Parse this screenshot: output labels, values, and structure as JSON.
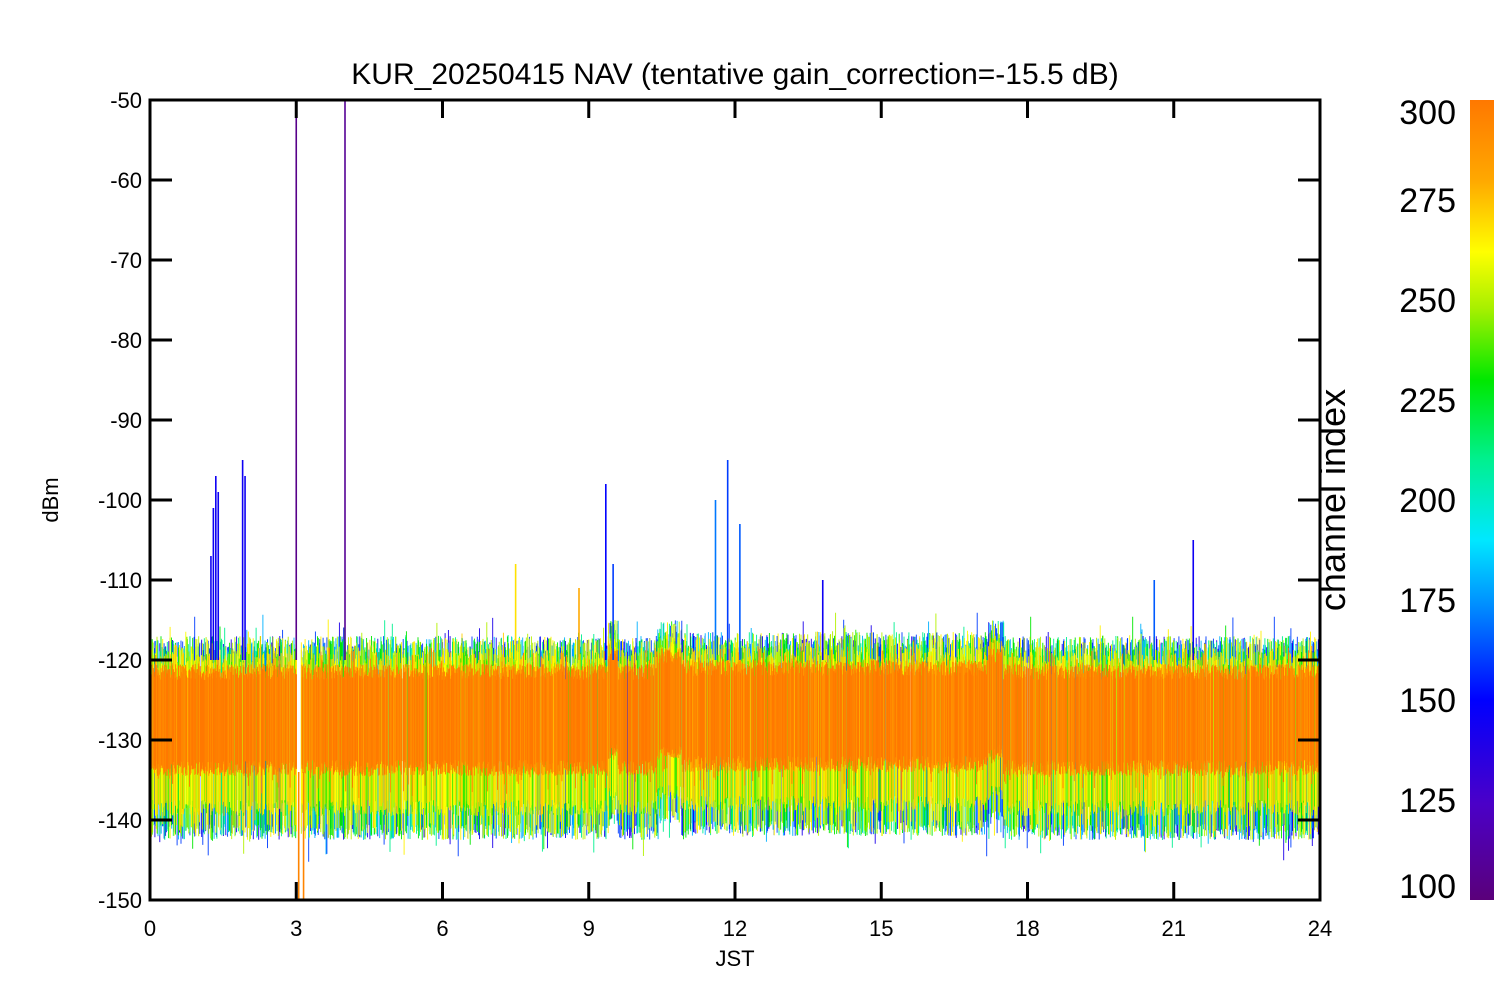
{
  "chart_data": {
    "type": "line",
    "title": "KUR_20250415 NAV (tentative gain_correction=-15.5 dB)",
    "xlabel": "JST",
    "ylabel": "dBm",
    "xlim": [
      0,
      24
    ],
    "ylim": [
      -150,
      -50
    ],
    "x_ticks": [
      "0",
      "3",
      "6",
      "9",
      "12",
      "15",
      "18",
      "21",
      "24"
    ],
    "y_ticks": [
      "-50",
      "-60",
      "-70",
      "-80",
      "-90",
      "-100",
      "-110",
      "-120",
      "-130",
      "-140",
      "-150"
    ],
    "colorbar": {
      "label": "channel index",
      "range": [
        100,
        300
      ],
      "ticks": [
        "300",
        "275",
        "250",
        "225",
        "200",
        "175",
        "150",
        "125",
        "100"
      ]
    },
    "noise_floor": {
      "orange_core": [
        -134,
        -121
      ],
      "envelope": [
        -140,
        -119
      ]
    },
    "segments": [
      {
        "x": [
          0,
          3.0
        ],
        "center": -128
      },
      {
        "x": [
          3.1,
          9.4
        ],
        "center": -128
      },
      {
        "x": [
          9.4,
          9.6
        ],
        "center": -126
      },
      {
        "x": [
          9.6,
          10.4
        ],
        "center": -128
      },
      {
        "x": [
          10.4,
          10.9
        ],
        "center": -126
      },
      {
        "x": [
          10.9,
          17.2
        ],
        "center": -127.5
      },
      {
        "x": [
          17.2,
          17.5
        ],
        "center": -126
      },
      {
        "x": [
          17.5,
          24
        ],
        "center": -128
      }
    ],
    "spikes": [
      {
        "x": 1.35,
        "y": -97,
        "channel": 145
      },
      {
        "x": 1.3,
        "y": -101,
        "channel": 145
      },
      {
        "x": 1.25,
        "y": -107,
        "channel": 145
      },
      {
        "x": 1.4,
        "y": -99,
        "channel": 145
      },
      {
        "x": 1.9,
        "y": -95,
        "channel": 145
      },
      {
        "x": 1.95,
        "y": -97,
        "channel": 145
      },
      {
        "x": 3.0,
        "y": -52,
        "channel": 105
      },
      {
        "x": 4.0,
        "y": -50,
        "channel": 108
      },
      {
        "x": 3.05,
        "y": -150,
        "channel": 295
      },
      {
        "x": 3.15,
        "y": -150,
        "channel": 295
      },
      {
        "x": 7.5,
        "y": -108,
        "channel": 268
      },
      {
        "x": 8.8,
        "y": -111,
        "channel": 280
      },
      {
        "x": 9.35,
        "y": -98,
        "channel": 150
      },
      {
        "x": 9.5,
        "y": -108,
        "channel": 160
      },
      {
        "x": 11.6,
        "y": -100,
        "channel": 170
      },
      {
        "x": 11.85,
        "y": -95,
        "channel": 160
      },
      {
        "x": 12.1,
        "y": -103,
        "channel": 165
      },
      {
        "x": 13.8,
        "y": -110,
        "channel": 145
      },
      {
        "x": 20.6,
        "y": -110,
        "channel": 165
      },
      {
        "x": 21.4,
        "y": -105,
        "channel": 145
      }
    ]
  }
}
